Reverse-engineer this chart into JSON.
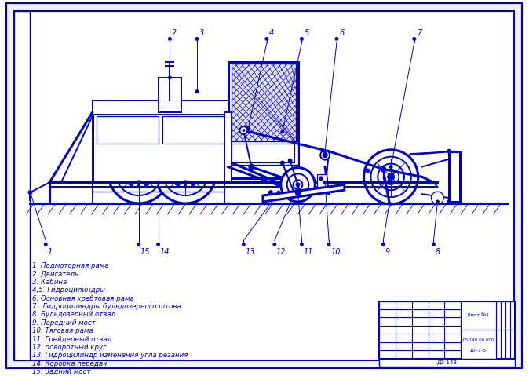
{
  "background_color": "#ffffff",
  "line_color": "#0000cc",
  "parts_list": [
    "1  Подмоторная рама",
    "2. Двигатель",
    "3. Кабина",
    "4,5. Гидроцилиндры",
    "6. Основная хребтовая рама",
    "7.  Гидроцилиндры бульдозерного штова",
    "8. Бульдозерный отвал",
    "9. Передний мост",
    "10. Тяговая рама",
    "11. Грейдерный отвал",
    "12. поворотный круг",
    "13. Гидроцилиндр изменения угла резания",
    "14. Коробка передач",
    "15. Задний мост"
  ],
  "stamp_line1": "Лист №1",
  "stamp_line2": "ДЗ-148.00.000",
  "stamp_line3": "ДТ-1-б"
}
